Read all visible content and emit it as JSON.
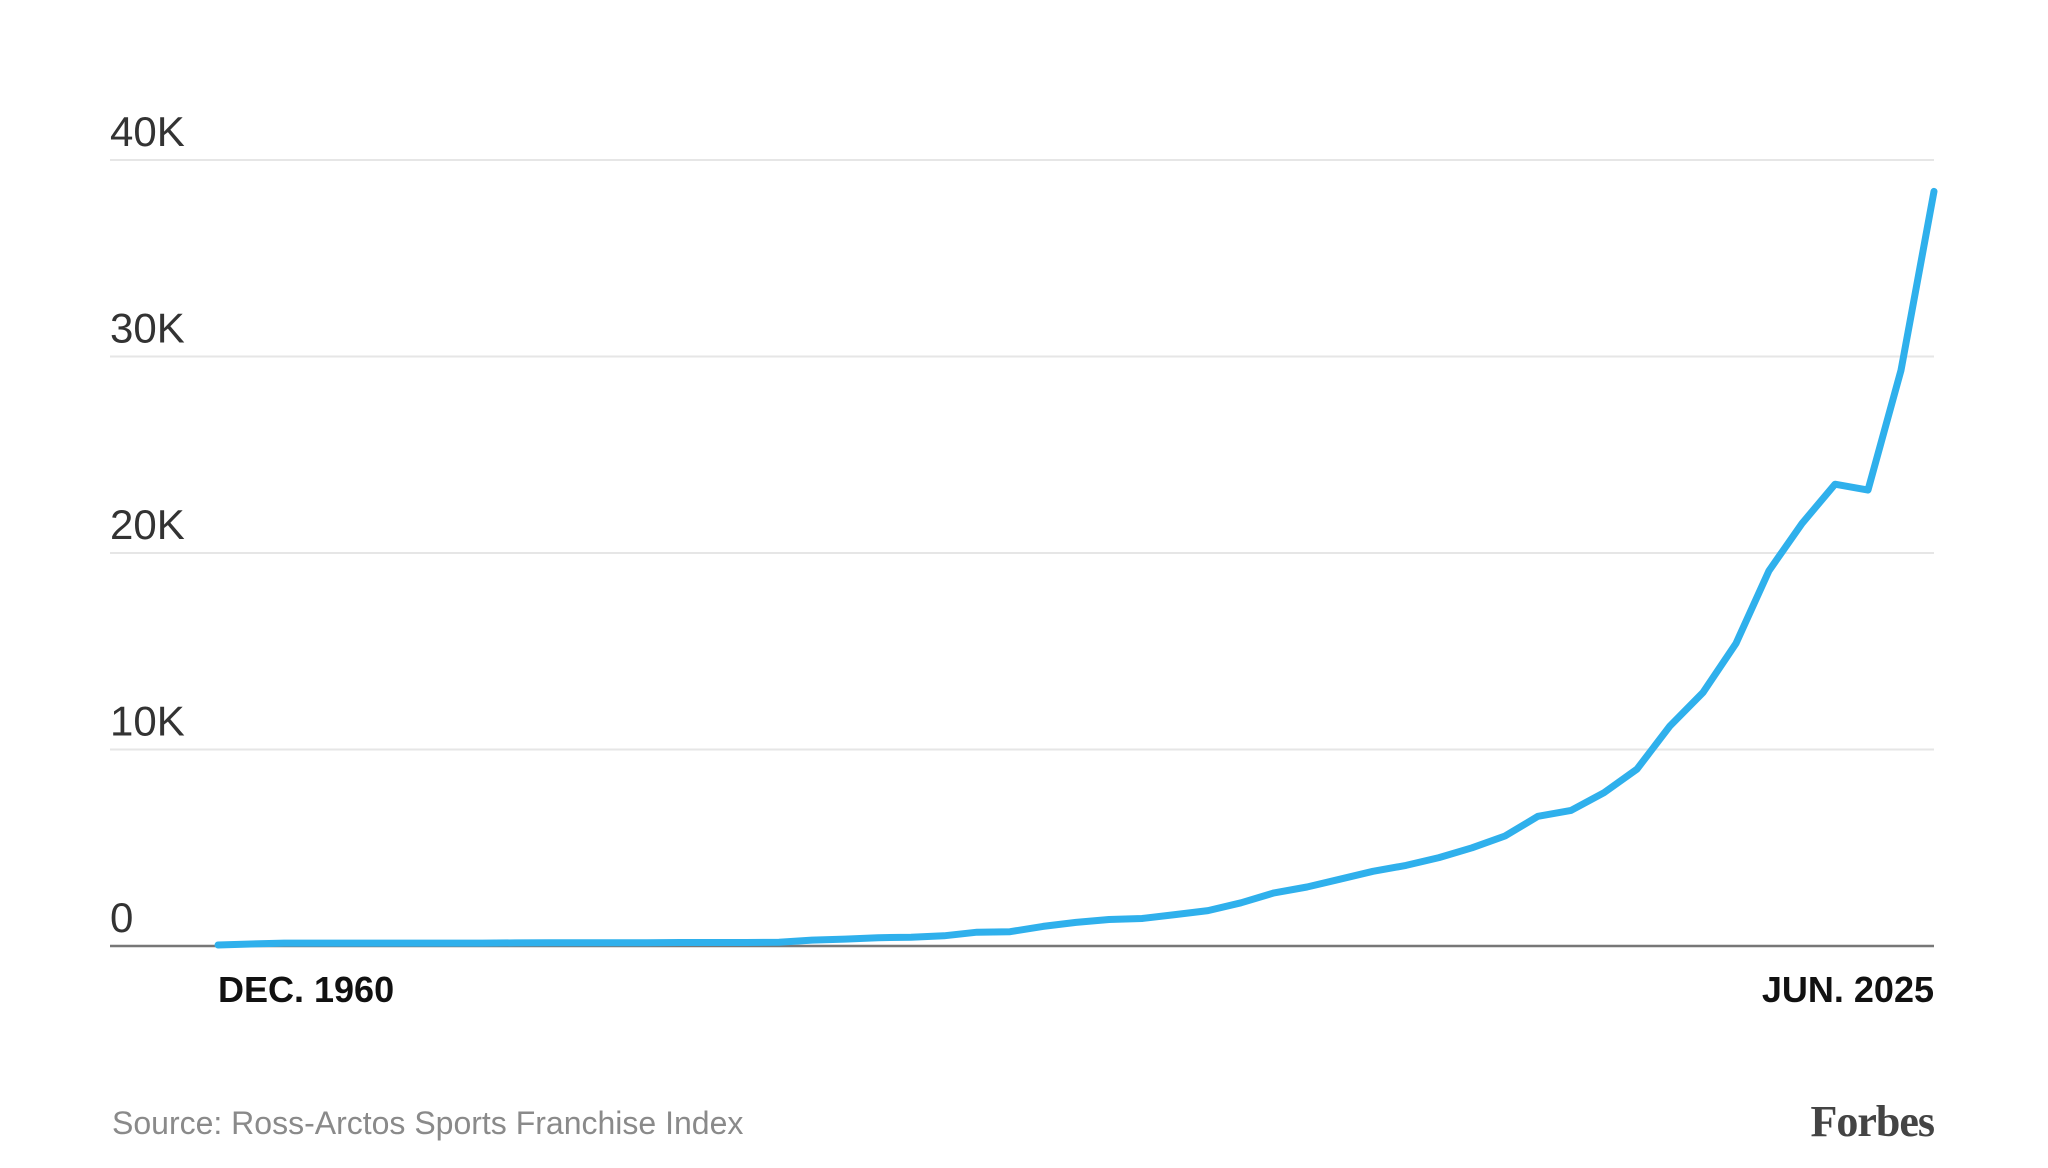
{
  "chart_data": {
    "type": "line",
    "categories": [
      "DEC. 1960",
      null,
      null,
      null,
      null,
      null,
      null,
      null,
      null,
      null,
      null,
      null,
      null,
      null,
      null,
      null,
      null,
      null,
      null,
      null,
      null,
      null,
      null,
      null,
      null,
      null,
      null,
      null,
      null,
      null,
      null,
      null,
      null,
      null,
      null,
      null,
      null,
      null,
      null,
      null,
      null,
      null,
      null,
      null,
      null,
      null,
      null,
      null,
      null,
      null,
      null,
      null,
      "JUN. 2025"
    ],
    "series": [
      {
        "name": null,
        "color": "#2fb0ec",
        "values": [
          50,
          100,
          150,
          150,
          150,
          150,
          150,
          150,
          150,
          160,
          170,
          170,
          170,
          170,
          180,
          180,
          180,
          190,
          300,
          350,
          420,
          450,
          520,
          700,
          730,
          1000,
          1200,
          1350,
          1400,
          1600,
          1800,
          2200,
          2700,
          3000,
          3400,
          3800,
          4100,
          4500,
          5000,
          5600,
          6600,
          6900,
          7800,
          9000,
          11200,
          12900,
          15400,
          19100,
          21500,
          23500,
          23200,
          29300,
          38400
        ]
      }
    ],
    "ylim": [
      0,
      40000
    ],
    "yticks": [
      0,
      {
        "value": 10000,
        "label": "10K"
      },
      {
        "value": 20000,
        "label": "20K"
      },
      {
        "value": 30000,
        "label": "30K"
      },
      {
        "value": 40000,
        "label": "40K"
      }
    ],
    "grid": true,
    "source": "Source: Ross-Arctos Sports Franchise Index",
    "brand": "Forbes"
  }
}
